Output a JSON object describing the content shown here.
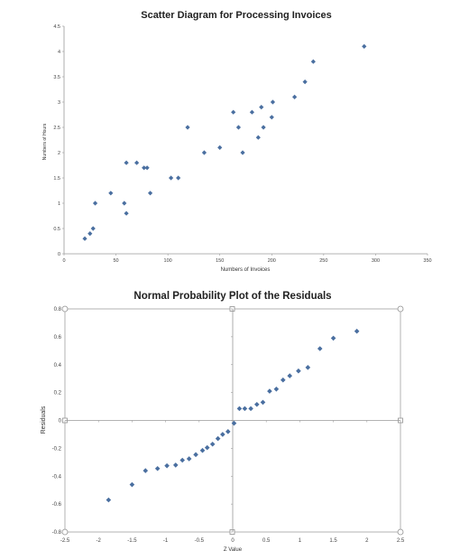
{
  "colors": {
    "marker": "#4a6fa0",
    "axis": "#9a9a9a",
    "text": "#333333",
    "frame": "#a0a0a0"
  },
  "chart_data": [
    {
      "type": "scatter",
      "title": "Scatter Diagram for Processing Invoices",
      "xlabel": "Numbers of Invoices",
      "ylabel": "Numbers of Hours",
      "xlim": [
        0,
        350
      ],
      "ylim": [
        0,
        4.5
      ],
      "x_ticks": [
        "0",
        "50",
        "100",
        "150",
        "200",
        "250",
        "300",
        "350"
      ],
      "y_ticks": [
        "0",
        "0.5",
        "1",
        "1.5",
        "2",
        "2.5",
        "3",
        "3.5",
        "4",
        "4.5"
      ],
      "grid": false,
      "points": [
        {
          "x": 20,
          "y": 0.3
        },
        {
          "x": 25,
          "y": 0.4
        },
        {
          "x": 28,
          "y": 0.5
        },
        {
          "x": 30,
          "y": 1.0
        },
        {
          "x": 45,
          "y": 1.2
        },
        {
          "x": 58,
          "y": 1.0
        },
        {
          "x": 60,
          "y": 0.8
        },
        {
          "x": 60,
          "y": 1.8
        },
        {
          "x": 70,
          "y": 1.8
        },
        {
          "x": 77,
          "y": 1.7
        },
        {
          "x": 80,
          "y": 1.7
        },
        {
          "x": 83,
          "y": 1.2
        },
        {
          "x": 103,
          "y": 1.5
        },
        {
          "x": 110,
          "y": 1.5
        },
        {
          "x": 119,
          "y": 2.5
        },
        {
          "x": 135,
          "y": 2.0
        },
        {
          "x": 150,
          "y": 2.1
        },
        {
          "x": 163,
          "y": 2.8
        },
        {
          "x": 168,
          "y": 2.5
        },
        {
          "x": 172,
          "y": 2.0
        },
        {
          "x": 181,
          "y": 2.8
        },
        {
          "x": 187,
          "y": 2.3
        },
        {
          "x": 190,
          "y": 2.9
        },
        {
          "x": 192,
          "y": 2.5
        },
        {
          "x": 200,
          "y": 2.7
        },
        {
          "x": 201,
          "y": 3.0
        },
        {
          "x": 222,
          "y": 3.1
        },
        {
          "x": 232,
          "y": 3.4
        },
        {
          "x": 240,
          "y": 3.8
        },
        {
          "x": 289,
          "y": 4.1
        }
      ]
    },
    {
      "type": "scatter",
      "title": "Normal Probability Plot of the Residuals",
      "xlabel": "Z Value",
      "ylabel": "Residuals",
      "xlim": [
        -2.5,
        2.5
      ],
      "ylim": [
        -0.8,
        0.8
      ],
      "x_ticks": [
        "-2.5",
        "-2",
        "-1.5",
        "-1",
        "-0.5",
        "0",
        "0.5",
        "1",
        "1.5",
        "2",
        "2.5"
      ],
      "y_ticks": [
        "-0.8",
        "-0.6",
        "-0.4",
        "-0.2",
        "0",
        "0.2",
        "0.4",
        "0.6",
        "0.8"
      ],
      "grid": false,
      "points": [
        {
          "x": -1.85,
          "y": -0.57
        },
        {
          "x": -1.5,
          "y": -0.46
        },
        {
          "x": -1.3,
          "y": -0.36
        },
        {
          "x": -1.12,
          "y": -0.345
        },
        {
          "x": -0.98,
          "y": -0.325
        },
        {
          "x": -0.85,
          "y": -0.32
        },
        {
          "x": -0.75,
          "y": -0.285
        },
        {
          "x": -0.65,
          "y": -0.275
        },
        {
          "x": -0.55,
          "y": -0.245
        },
        {
          "x": -0.45,
          "y": -0.215
        },
        {
          "x": -0.38,
          "y": -0.195
        },
        {
          "x": -0.3,
          "y": -0.17
        },
        {
          "x": -0.22,
          "y": -0.13
        },
        {
          "x": -0.15,
          "y": -0.1
        },
        {
          "x": -0.07,
          "y": -0.08
        },
        {
          "x": 0.02,
          "y": -0.02
        },
        {
          "x": 0.1,
          "y": 0.085
        },
        {
          "x": 0.18,
          "y": 0.085
        },
        {
          "x": 0.27,
          "y": 0.085
        },
        {
          "x": 0.36,
          "y": 0.115
        },
        {
          "x": 0.45,
          "y": 0.13
        },
        {
          "x": 0.55,
          "y": 0.21
        },
        {
          "x": 0.65,
          "y": 0.225
        },
        {
          "x": 0.75,
          "y": 0.29
        },
        {
          "x": 0.85,
          "y": 0.32
        },
        {
          "x": 0.98,
          "y": 0.355
        },
        {
          "x": 1.12,
          "y": 0.38
        },
        {
          "x": 1.3,
          "y": 0.515
        },
        {
          "x": 1.5,
          "y": 0.59
        },
        {
          "x": 1.85,
          "y": 0.64
        }
      ]
    }
  ]
}
